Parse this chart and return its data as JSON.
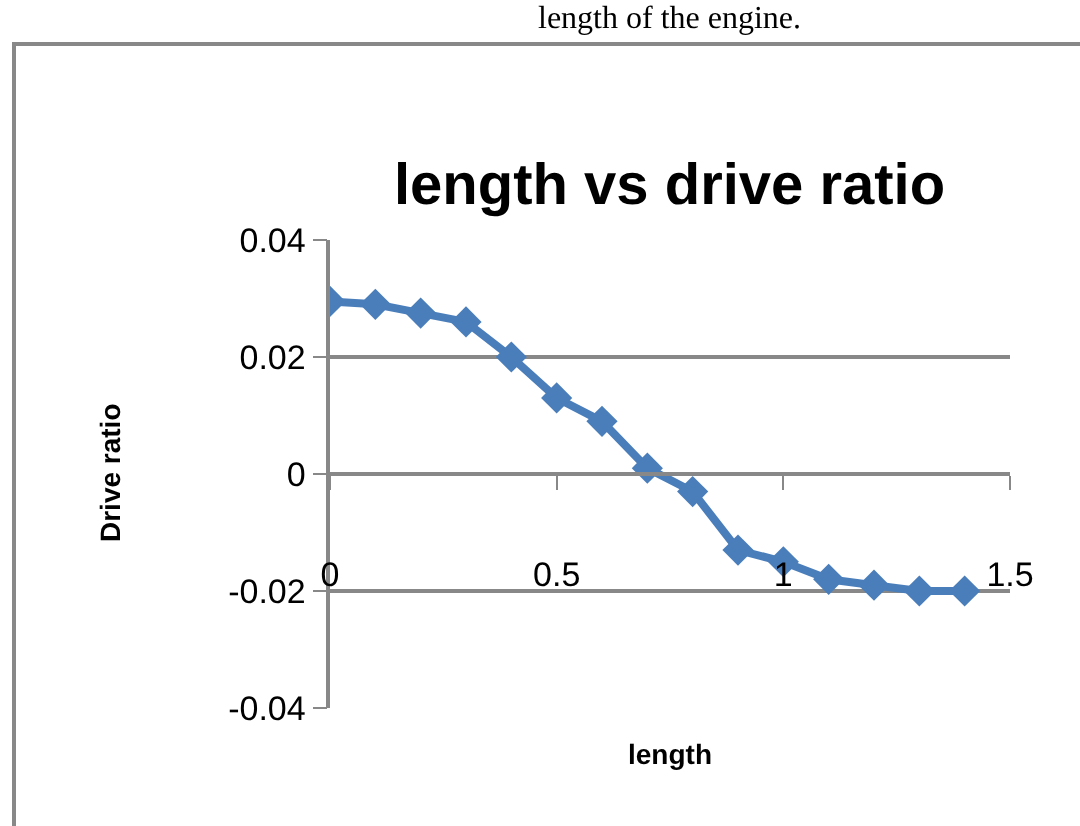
{
  "chart_data": {
    "type": "line",
    "title": "length vs drive ratio",
    "xlabel": "length",
    "ylabel": "Drive ratio",
    "annotations": [
      "length of the engine."
    ],
    "x": [
      0,
      0.1,
      0.2,
      0.3,
      0.4,
      0.5,
      0.6,
      0.7,
      0.8,
      0.9,
      1.0,
      1.1,
      1.2,
      1.3,
      1.4
    ],
    "series": [
      {
        "color": "#4a7ebb",
        "values": [
          0.0295,
          0.029,
          0.0275,
          0.026,
          0.02,
          0.013,
          0.009,
          0.001,
          -0.003,
          -0.013,
          -0.015,
          -0.018,
          -0.019,
          -0.02,
          -0.02
        ]
      }
    ],
    "xlim": [
      0,
      1.5
    ],
    "xticks": [
      0,
      0.5,
      1,
      1.5
    ],
    "ylim": [
      -0.04,
      0.04
    ],
    "yticks": [
      -0.04,
      -0.02,
      0,
      0.02,
      0.04
    ],
    "grid": "y",
    "marker": "diamond",
    "line_style": "solid"
  }
}
